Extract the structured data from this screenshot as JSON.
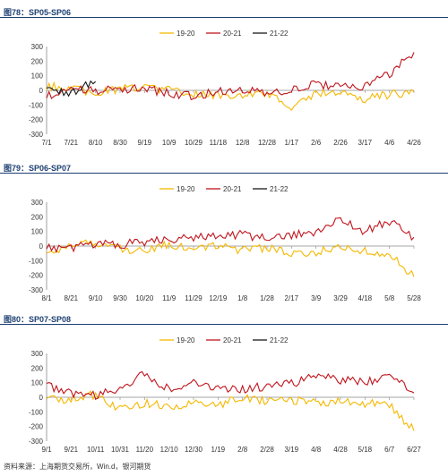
{
  "colors": {
    "s1920": "#F5B800",
    "s2021": "#C0151E",
    "s2122": "#1A1A1A",
    "axis": "#888888",
    "title": "#1D3F72"
  },
  "legend_labels": [
    "19-20",
    "20-21",
    "21-22"
  ],
  "footer": "资料来源：上海期货交易所，Win.d，银河期货",
  "chart_data": [
    {
      "type": "line",
      "title": "图78：SP05-SP06",
      "ylim": [
        -300,
        300
      ],
      "yticks": [
        "300",
        "200",
        "100",
        "0",
        "-100",
        "-200",
        "-300"
      ],
      "xticks": [
        "7/1",
        "7/21",
        "8/10",
        "8/30",
        "9/19",
        "10/9",
        "10/29",
        "11/18",
        "12/8",
        "12/28",
        "1/17",
        "2/6",
        "2/26",
        "3/17",
        "4/6",
        "4/26"
      ],
      "series": [
        {
          "name": "19-20",
          "x": [
            0,
            1,
            2,
            3,
            4,
            5,
            6,
            7,
            8,
            9,
            10,
            11,
            12,
            13,
            14,
            15
          ],
          "values": [
            30,
            20,
            -20,
            10,
            15,
            0,
            -20,
            -40,
            -30,
            -20,
            -130,
            -10,
            -20,
            -60,
            -30,
            -10
          ]
        },
        {
          "name": "20-21",
          "x": [
            0,
            1,
            2,
            3,
            4,
            5,
            6,
            7,
            8,
            9,
            10,
            11,
            12,
            13,
            14,
            15
          ],
          "values": [
            -40,
            30,
            -10,
            10,
            10,
            -20,
            -40,
            -10,
            10,
            -10,
            0,
            40,
            20,
            30,
            110,
            260
          ]
        },
        {
          "name": "21-22",
          "x": [
            0,
            1,
            2
          ],
          "values": [
            10,
            -20,
            60
          ]
        }
      ]
    },
    {
      "type": "line",
      "title": "图79：SP06-SP07",
      "ylim": [
        -300,
        300
      ],
      "yticks": [
        "300",
        "200",
        "100",
        "0",
        "-100",
        "-200",
        "-300"
      ],
      "xticks": [
        "8/1",
        "8/21",
        "9/10",
        "9/30",
        "10/20",
        "11/9",
        "11/29",
        "12/19",
        "1/8",
        "1/28",
        "2/17",
        "3/9",
        "3/29",
        "4/18",
        "5/8",
        "5/28"
      ],
      "series": [
        {
          "name": "19-20",
          "x": [
            0,
            1,
            2,
            3,
            4,
            5,
            6,
            7,
            8,
            9,
            10,
            11,
            12,
            13,
            14,
            15
          ],
          "values": [
            -60,
            10,
            20,
            -20,
            -30,
            10,
            -30,
            0,
            -30,
            -10,
            -50,
            -40,
            -10,
            -40,
            -60,
            -210
          ]
        },
        {
          "name": "20-21",
          "x": [
            0,
            1,
            2,
            3,
            4,
            5,
            6,
            7,
            8,
            9,
            10,
            11,
            12,
            13,
            14,
            15
          ],
          "values": [
            -10,
            -20,
            20,
            10,
            30,
            40,
            60,
            70,
            80,
            50,
            70,
            100,
            190,
            100,
            170,
            60
          ]
        },
        {
          "name": "21-22",
          "x": [],
          "values": []
        }
      ]
    },
    {
      "type": "line",
      "title": "图80：SP07-SP08",
      "ylim": [
        -300,
        300
      ],
      "yticks": [
        "300",
        "200",
        "100",
        "0",
        "-100",
        "-200",
        "-300"
      ],
      "xticks": [
        "9/1",
        "9/21",
        "10/11",
        "10/31",
        "11/20",
        "12/10",
        "12/30",
        "1/19",
        "2/8",
        "2/28",
        "3/19",
        "4/8",
        "4/28",
        "5/18",
        "6/7",
        "6/27"
      ],
      "series": [
        {
          "name": "19-20",
          "x": [
            0,
            1,
            2,
            3,
            4,
            5,
            6,
            7,
            8,
            9,
            10,
            11,
            12,
            13,
            14,
            15
          ],
          "values": [
            0,
            -20,
            20,
            -80,
            -40,
            -60,
            -40,
            -50,
            0,
            -30,
            -20,
            -40,
            -30,
            -40,
            -50,
            -230
          ]
        },
        {
          "name": "20-21",
          "x": [
            0,
            1,
            2,
            3,
            4,
            5,
            6,
            7,
            8,
            9,
            10,
            11,
            12,
            13,
            14,
            15
          ],
          "values": [
            80,
            30,
            10,
            60,
            160,
            50,
            100,
            60,
            50,
            80,
            90,
            160,
            120,
            100,
            150,
            30
          ]
        },
        {
          "name": "21-22",
          "x": [],
          "values": []
        }
      ]
    }
  ]
}
